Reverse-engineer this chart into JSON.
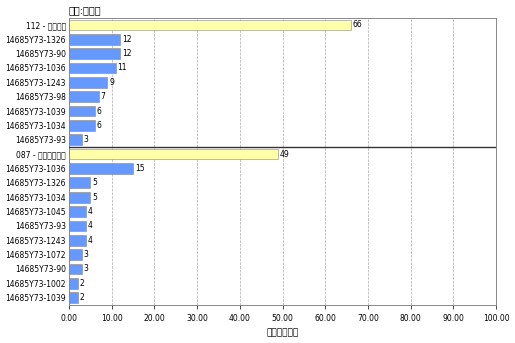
{
  "title": "代码:序列号",
  "xlabel": "盈点数百分比",
  "labels": [
    "112 - 端塞污点",
    "14685Y73-1326",
    "14685Y73-90",
    "14685Y73-1036",
    "14685Y73-1243",
    "14685Y73-98",
    "14685Y73-1039",
    "14685Y73-1034",
    "14685Y73-93",
    "087 - 不正确的扭矩",
    "14685Y73-1036",
    "14685Y73-1326",
    "14685Y73-1034",
    "14685Y73-1045",
    "14685Y73-93",
    "14685Y73-1243",
    "14685Y73-1072",
    "14685Y73-90",
    "14685Y73-1002",
    "14685Y73-1039"
  ],
  "values": [
    66,
    12,
    12,
    11,
    9,
    7,
    6,
    6,
    3,
    49,
    15,
    5,
    5,
    4,
    4,
    4,
    3,
    3,
    2,
    2
  ],
  "colors": [
    "#FFFFAA",
    "#6699FF",
    "#6699FF",
    "#6699FF",
    "#6699FF",
    "#6699FF",
    "#6699FF",
    "#6699FF",
    "#6699FF",
    "#FFFFAA",
    "#6699FF",
    "#6699FF",
    "#6699FF",
    "#6699FF",
    "#6699FF",
    "#6699FF",
    "#6699FF",
    "#6699FF",
    "#6699FF",
    "#6699FF"
  ],
  "yellow_color": "#FFFFAA",
  "blue_color": "#6699FF",
  "xlim": [
    0,
    100
  ],
  "xticks": [
    0,
    10,
    20,
    30,
    40,
    50,
    60,
    70,
    80,
    90,
    100
  ],
  "xtick_labels": [
    "0.00",
    "10.00",
    "20.00",
    "30.00",
    "40.00",
    "50.00",
    "60.00",
    "70.00",
    "80.00",
    "90.00",
    "100.00"
  ],
  "bg_color": "#FFFFFF",
  "grid_color": "#AAAAAA",
  "bar_height": 0.75,
  "section_separator_indices": [
    9
  ],
  "figsize": [
    5.15,
    3.43
  ],
  "dpi": 100
}
